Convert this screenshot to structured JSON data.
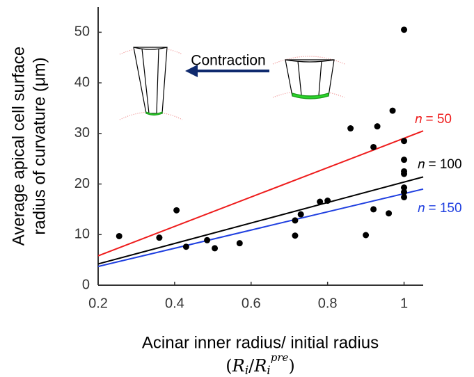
{
  "chart_data": {
    "type": "scatter",
    "x_label": "Acinar inner radius/ initial radius",
    "x_label_formula": [
      "(",
      "R",
      "i",
      "/",
      "R",
      "i",
      "pre",
      ")"
    ],
    "y_label": [
      "Average apical cell surface",
      "radius of curvature (μm)"
    ],
    "annotation": "Contraction",
    "xlim": [
      0.2,
      1.05
    ],
    "ylim": [
      0,
      55
    ],
    "xticks": [
      0.2,
      0.4,
      0.6,
      0.8,
      1
    ],
    "yticks": [
      0,
      10,
      20,
      30,
      40,
      50
    ],
    "points": {
      "color": "#000000",
      "x": [
        0.255,
        0.36,
        0.405,
        0.43,
        0.485,
        0.505,
        0.57,
        0.715,
        0.715,
        0.73,
        0.78,
        0.8,
        0.86,
        0.9,
        0.92,
        0.92,
        0.93,
        0.96,
        0.97,
        1.0,
        1.0,
        1.0,
        1.0,
        1.0,
        1.0,
        1.0,
        1.0
      ],
      "values": [
        9.7,
        9.4,
        14.8,
        7.6,
        8.9,
        7.3,
        8.3,
        9.8,
        12.8,
        14,
        16.5,
        16.7,
        31,
        9.9,
        15,
        27.3,
        31.4,
        14.2,
        34.5,
        50.5,
        28.5,
        24.8,
        22.5,
        22,
        19.3,
        18.4,
        17.4
      ]
    },
    "series": [
      {
        "name": "𝑛 = 50",
        "color": "#ee1c1c",
        "x": [
          0.2,
          1.05
        ],
        "values": [
          5.8,
          30.5
        ]
      },
      {
        "name": "𝑛 = 100",
        "color": "#000000",
        "x": [
          0.2,
          1.05
        ],
        "values": [
          4.2,
          21.4
        ]
      },
      {
        "name": "𝑛 = 150",
        "color": "#1f3fe0",
        "x": [
          0.2,
          1.05
        ],
        "values": [
          3.7,
          19
        ]
      }
    ]
  }
}
